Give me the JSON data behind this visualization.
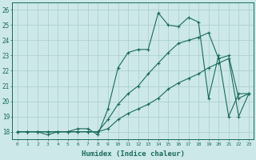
{
  "xlabel": "Humidex (Indice chaleur)",
  "xlim": [
    -0.5,
    23.5
  ],
  "ylim": [
    17.5,
    26.5
  ],
  "yticks": [
    18,
    19,
    20,
    21,
    22,
    23,
    24,
    25,
    26
  ],
  "xticks": [
    0,
    1,
    2,
    3,
    4,
    5,
    6,
    7,
    8,
    9,
    10,
    11,
    12,
    13,
    14,
    15,
    16,
    17,
    18,
    19,
    20,
    21,
    22,
    23
  ],
  "bg_color": "#cce8e8",
  "grid_color": "#aacccc",
  "line_color": "#1a6b5a",
  "line1_x": [
    0,
    1,
    2,
    3,
    4,
    5,
    6,
    7,
    8,
    9,
    10,
    11,
    12,
    13,
    14,
    15,
    16,
    17,
    18,
    19,
    20,
    21,
    22,
    23
  ],
  "line1_y": [
    18.0,
    18.0,
    18.0,
    17.8,
    18.0,
    18.0,
    18.2,
    18.2,
    17.8,
    19.5,
    22.2,
    23.2,
    23.4,
    23.4,
    25.8,
    25.0,
    24.9,
    25.5,
    25.2,
    20.2,
    23.0,
    19.0,
    20.5,
    20.5
  ],
  "line2_x": [
    0,
    1,
    2,
    3,
    4,
    5,
    6,
    7,
    8,
    9,
    10,
    11,
    12,
    13,
    14,
    15,
    16,
    17,
    18,
    19,
    20,
    21,
    22,
    23
  ],
  "line2_y": [
    18.0,
    18.0,
    18.0,
    18.0,
    18.0,
    18.0,
    18.0,
    18.0,
    18.0,
    18.8,
    19.8,
    20.5,
    21.0,
    21.8,
    22.5,
    23.2,
    23.8,
    24.0,
    24.2,
    24.5,
    22.8,
    23.0,
    20.2,
    20.5
  ],
  "line3_x": [
    0,
    1,
    2,
    3,
    4,
    5,
    6,
    7,
    8,
    9,
    10,
    11,
    12,
    13,
    14,
    15,
    16,
    17,
    18,
    19,
    20,
    21,
    22,
    23
  ],
  "line3_y": [
    18.0,
    18.0,
    18.0,
    18.0,
    18.0,
    18.0,
    18.0,
    18.0,
    18.0,
    18.2,
    18.8,
    19.2,
    19.5,
    19.8,
    20.2,
    20.8,
    21.2,
    21.5,
    21.8,
    22.2,
    22.5,
    22.8,
    19.0,
    20.5
  ]
}
